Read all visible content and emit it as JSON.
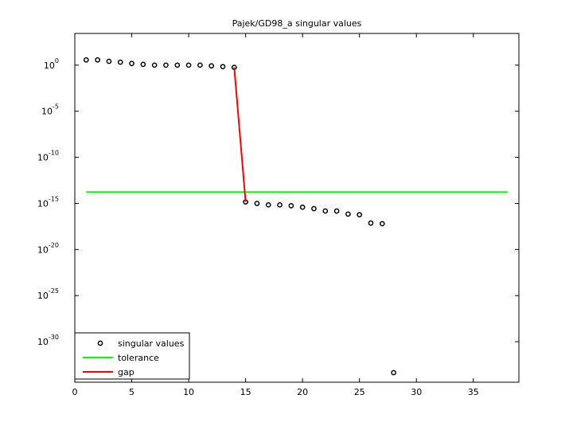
{
  "chart_data": {
    "type": "scatter",
    "title": "Pajek/GD98_a singular values",
    "xlim": [
      0,
      39
    ],
    "xticks": [
      0,
      5,
      10,
      15,
      20,
      25,
      30,
      35
    ],
    "ylim": [
      4e-35,
      2750
    ],
    "log_y": true,
    "yticks": [
      {
        "value": 1,
        "label": "10",
        "exponent": "0"
      },
      {
        "value": 1e-05,
        "label": "10",
        "exponent": "-5"
      },
      {
        "value": 1e-10,
        "label": "10",
        "exponent": "-10"
      },
      {
        "value": 1e-15,
        "label": "10",
        "exponent": "-15"
      },
      {
        "value": 1e-20,
        "label": "10",
        "exponent": "-20"
      },
      {
        "value": 1e-25,
        "label": "10",
        "exponent": "-25"
      },
      {
        "value": 1e-30,
        "label": "10",
        "exponent": "-30"
      }
    ],
    "grid": false,
    "legend": "lower left",
    "series": [
      {
        "name": "singular values",
        "kind": "markers",
        "color": "#000000",
        "x": [
          1,
          2,
          3,
          4,
          5,
          6,
          7,
          8,
          9,
          10,
          11,
          12,
          13,
          14,
          15,
          16,
          17,
          18,
          19,
          20,
          21,
          22,
          23,
          24,
          25,
          26,
          27,
          28
        ],
        "values": [
          3.7,
          3.7,
          2.6,
          2.1,
          1.5,
          1.2,
          1.0,
          1.0,
          1.0,
          1.0,
          1.0,
          0.83,
          0.69,
          0.57,
          1.45e-15,
          1e-15,
          6.9e-16,
          6.9e-16,
          5.6e-16,
          3.9e-16,
          2.7e-16,
          1.5e-16,
          1.5e-16,
          7e-17,
          5.9e-17,
          7.4e-18,
          6.3e-18,
          4.4e-34
        ]
      },
      {
        "name": "tolerance",
        "kind": "line",
        "color": "#00ff00",
        "x": [
          1,
          38
        ],
        "values": [
          1.7e-14,
          1.7e-14
        ]
      },
      {
        "name": "gap",
        "kind": "line",
        "color": "#ff0000",
        "x": [
          14,
          15
        ],
        "values": [
          0.57,
          1.45e-15
        ]
      }
    ]
  }
}
